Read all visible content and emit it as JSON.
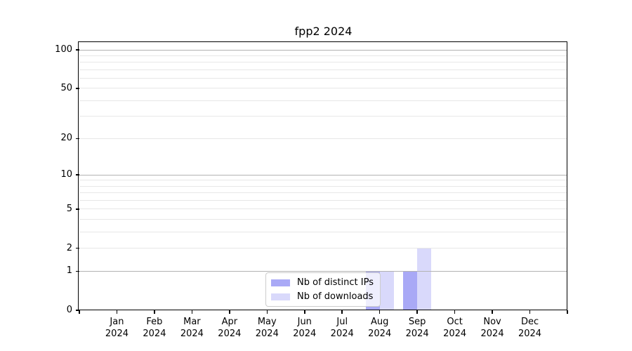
{
  "figure": {
    "title": "fpp2 2024"
  },
  "chart_data": {
    "type": "bar",
    "title": "fpp2 2024",
    "categories": [
      "Jan 2024",
      "Feb 2024",
      "Mar 2024",
      "Apr 2024",
      "May 2024",
      "Jun 2024",
      "Jul 2024",
      "Aug 2024",
      "Sep 2024",
      "Oct 2024",
      "Nov 2024",
      "Dec 2024"
    ],
    "x": {
      "months": [
        "Jan",
        "Feb",
        "Mar",
        "Apr",
        "May",
        "Jun",
        "Jul",
        "Aug",
        "Sep",
        "Oct",
        "Nov",
        "Dec"
      ],
      "year": "2024"
    },
    "series": [
      {
        "name": "Nb of distinct IPs",
        "color": "#a9a9f6",
        "values": [
          0,
          0,
          0,
          0,
          0,
          0,
          0,
          1,
          1,
          0,
          0,
          0
        ]
      },
      {
        "name": "Nb of downloads",
        "color": "#d9d9fb",
        "values": [
          0,
          0,
          0,
          0,
          0,
          0,
          0,
          1,
          2,
          0,
          0,
          0
        ]
      }
    ],
    "y_axis": {
      "scale": "log1p",
      "tick_labels": [
        "0",
        "1",
        "2",
        "5",
        "10",
        "20",
        "50",
        "100"
      ],
      "tick_values": [
        0,
        1,
        2,
        5,
        10,
        20,
        50,
        100
      ],
      "major_gridlines": [
        1,
        10,
        100
      ],
      "minor_gridlines": [
        2,
        3,
        4,
        5,
        6,
        7,
        8,
        9,
        20,
        30,
        40,
        50,
        60,
        70,
        80,
        90
      ],
      "ymin": 0,
      "top_value": 113.4
    },
    "legend": {
      "position": "lower center"
    },
    "grid": true,
    "colors": {
      "major_grid": "#b2b2b2",
      "minor_grid": "#e7e7e7",
      "spine": "#000000",
      "background": "#ffffff"
    }
  }
}
